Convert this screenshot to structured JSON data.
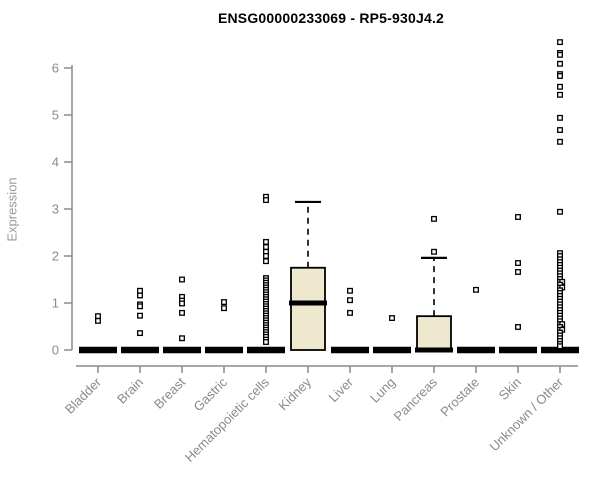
{
  "chart_data": {
    "type": "boxplot",
    "title": "ENSG00000233069 - RP5-930J4.2",
    "ylabel": "Expression",
    "xlabel": "",
    "ylim": [
      0,
      6.7
    ],
    "yticks": [
      0,
      1,
      2,
      3,
      4,
      5,
      6
    ],
    "grid": false,
    "legend": null,
    "categories": [
      "Bladder",
      "Brain",
      "Breast",
      "Gastric",
      "Hematopoietic cells",
      "Kidney",
      "Liver",
      "Lung",
      "Pancreas",
      "Prostate",
      "Skin",
      "Unknown / Other"
    ],
    "boxes": [
      {
        "category": "Bladder",
        "q1": 0,
        "median": 0,
        "q3": 0,
        "whisker_low": 0,
        "whisker_high": 0,
        "outliers": [
          0.72,
          0.62
        ]
      },
      {
        "category": "Brain",
        "q1": 0,
        "median": 0,
        "q3": 0,
        "whisker_low": 0,
        "whisker_high": 0,
        "outliers": [
          1.26,
          1.16,
          0.97,
          0.93,
          0.73,
          0.36
        ]
      },
      {
        "category": "Breast",
        "q1": 0,
        "median": 0,
        "q3": 0,
        "whisker_low": 0,
        "whisker_high": 0,
        "outliers": [
          1.5,
          1.13,
          1.05,
          0.99,
          0.79,
          0.25
        ]
      },
      {
        "category": "Gastric",
        "q1": 0,
        "median": 0,
        "q3": 0,
        "whisker_low": 0,
        "whisker_high": 0,
        "outliers": [
          1.02,
          0.89
        ]
      },
      {
        "category": "Hematopoietic cells",
        "q1": 0,
        "median": 0,
        "q3": 0,
        "whisker_low": 0,
        "whisker_high": 0,
        "outliers": [
          3.26,
          3.19,
          2.3,
          2.19,
          2.09,
          2.0,
          1.89,
          1.53,
          1.48,
          1.43,
          1.38,
          1.33,
          1.28,
          1.23,
          1.18,
          1.13,
          1.08,
          1.03,
          0.98,
          0.93,
          0.88,
          0.83,
          0.78,
          0.73,
          0.68,
          0.63,
          0.58,
          0.53,
          0.48,
          0.43,
          0.38,
          0.33,
          0.28,
          0.22,
          0.17
        ]
      },
      {
        "category": "Kidney",
        "q1": 0,
        "median": 1.0,
        "q3": 1.75,
        "whisker_low": 0,
        "whisker_high": 3.15,
        "outliers": []
      },
      {
        "category": "Liver",
        "q1": 0,
        "median": 0,
        "q3": 0,
        "whisker_low": 0,
        "whisker_high": 0,
        "outliers": [
          1.26,
          1.06,
          0.79
        ]
      },
      {
        "category": "Lung",
        "q1": 0,
        "median": 0,
        "q3": 0,
        "whisker_low": 0,
        "whisker_high": 0,
        "outliers": [
          0.68
        ]
      },
      {
        "category": "Pancreas",
        "q1": 0,
        "median": 0,
        "q3": 0.72,
        "whisker_low": 0,
        "whisker_high": 1.96,
        "outliers": [
          2.79,
          2.09
        ]
      },
      {
        "category": "Prostate",
        "q1": 0,
        "median": 0,
        "q3": 0,
        "whisker_low": 0,
        "whisker_high": 0,
        "outliers": [
          1.28
        ]
      },
      {
        "category": "Skin",
        "q1": 0,
        "median": 0,
        "q3": 0,
        "whisker_low": 0,
        "whisker_high": 0,
        "outliers": [
          2.83,
          1.85,
          1.66,
          0.49
        ]
      },
      {
        "category": "Unknown / Other",
        "q1": 0,
        "median": 0,
        "q3": 0,
        "whisker_low": 0,
        "whisker_high": 0,
        "outliers": [
          6.55,
          6.32,
          6.28,
          6.09,
          5.87,
          5.83,
          5.6,
          5.43,
          4.94,
          4.68,
          4.43,
          2.94,
          2.06,
          2.0,
          1.93,
          1.87,
          1.81,
          1.75,
          1.69,
          1.63,
          1.57,
          1.51,
          1.45,
          1.45,
          1.39,
          1.33,
          1.33,
          1.27,
          1.21,
          1.15,
          1.09,
          1.03,
          0.97,
          0.91,
          0.85,
          0.79,
          0.73,
          0.67,
          0.61,
          0.55,
          0.55,
          0.49,
          0.43,
          0.43,
          0.37,
          0.31,
          0.25,
          0.19,
          0.13,
          0.08
        ]
      }
    ],
    "colors": {
      "box_fill": "#EDE8CE",
      "box_stroke": "#000000",
      "median": "#000000",
      "whisker": "#000000",
      "outlier_stroke": "#000000",
      "outlier_fill": "#ffffff",
      "axis": "#8a8a8a",
      "tick_label": "#8a8a8a",
      "title": "#000000",
      "ylabel": "#999999",
      "background": "#ffffff"
    }
  }
}
